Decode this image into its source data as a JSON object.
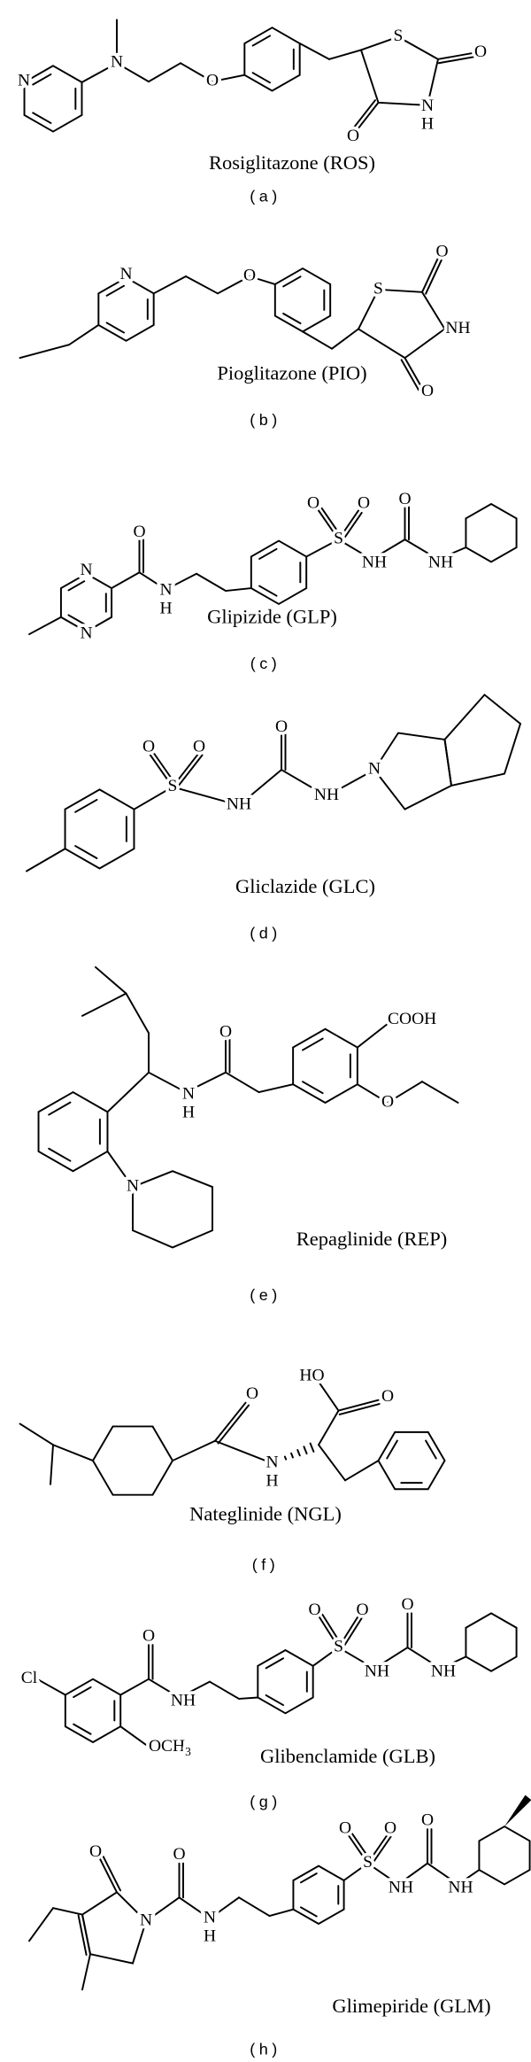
{
  "panels": [
    {
      "label": "(a)",
      "name": "Rosiglitazone (ROS)",
      "atoms": [
        "N",
        "N",
        "O",
        "S",
        "O",
        "N",
        "H",
        "O"
      ]
    },
    {
      "label": "(b)",
      "name": "Pioglitazone (PIO)",
      "atoms": [
        "N",
        "O",
        "S",
        "O",
        "NH",
        "O"
      ]
    },
    {
      "label": "(c)",
      "name": "Glipizide (GLP)",
      "atoms": [
        "N",
        "N",
        "O",
        "N",
        "H",
        "S",
        "O",
        "O",
        "NH",
        "O",
        "NH"
      ]
    },
    {
      "label": "(d)",
      "name": "Gliclazide (GLC)",
      "atoms": [
        "O",
        "S",
        "O",
        "NH",
        "O",
        "NH",
        "N"
      ]
    },
    {
      "label": "(e)",
      "name": "Repaglinide (REP)",
      "atoms": [
        "N",
        "H",
        "O",
        "N",
        "COOH",
        "O"
      ]
    },
    {
      "label": "(f)",
      "name": "Nateglinide (NGL)",
      "atoms": [
        "O",
        "N",
        "H",
        "HO",
        "O"
      ]
    },
    {
      "label": "(g)",
      "name": "Glibenclamide (GLB)",
      "atoms": [
        "Cl",
        "O",
        "NH",
        {
          "text": "OCH",
          "sub": "3"
        },
        "S",
        "O",
        "O",
        "NH",
        "O",
        "NH"
      ]
    },
    {
      "label": "(h)",
      "name": "Glimepiride (GLM)",
      "atoms": [
        "O",
        "N",
        "O",
        "N",
        "H",
        "S",
        "O",
        "O",
        "NH",
        "O",
        "NH"
      ]
    }
  ]
}
